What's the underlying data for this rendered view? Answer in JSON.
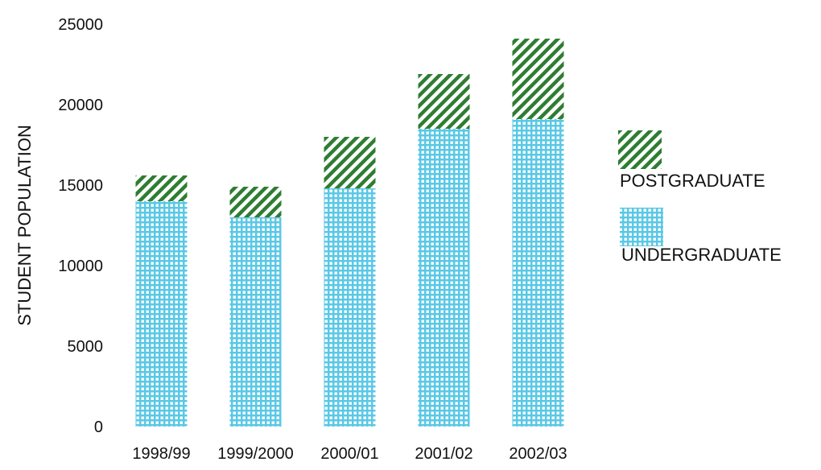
{
  "chart_data": {
    "type": "bar",
    "stacked": true,
    "categories": [
      "1998/99",
      "1999/2000",
      "2000/01",
      "2001/02",
      "2002/03"
    ],
    "series": [
      {
        "name": "UNDERGRADUATE",
        "values": [
          14000,
          13000,
          14800,
          18500,
          19100
        ],
        "color": "#5ac8e6"
      },
      {
        "name": "POSTGRADUATE",
        "values": [
          1600,
          1900,
          3200,
          3400,
          5000
        ],
        "color": "#2e7d32"
      }
    ],
    "ylabel": "STUDENT POPULATION",
    "xlabel": "",
    "yticks": [
      "0",
      "5000",
      "10000",
      "15000",
      "20000",
      "25000"
    ],
    "ylim": [
      0,
      25000
    ],
    "grid": false,
    "legend_position": "right"
  }
}
